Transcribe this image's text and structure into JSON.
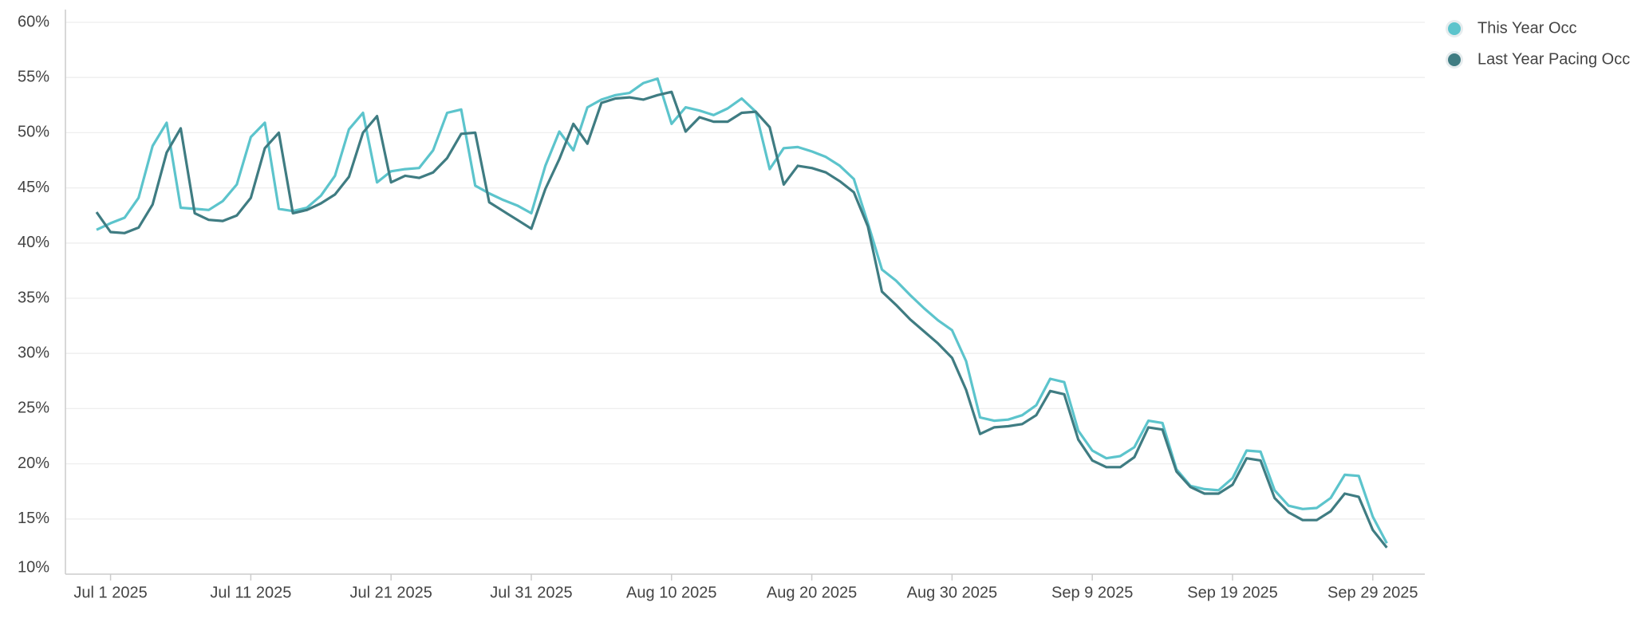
{
  "chart_data": {
    "type": "line",
    "x": [
      "2025-06-30",
      "2025-07-01",
      "2025-07-02",
      "2025-07-03",
      "2025-07-04",
      "2025-07-05",
      "2025-07-06",
      "2025-07-07",
      "2025-07-08",
      "2025-07-09",
      "2025-07-10",
      "2025-07-11",
      "2025-07-12",
      "2025-07-13",
      "2025-07-14",
      "2025-07-15",
      "2025-07-16",
      "2025-07-17",
      "2025-07-18",
      "2025-07-19",
      "2025-07-20",
      "2025-07-21",
      "2025-07-22",
      "2025-07-23",
      "2025-07-24",
      "2025-07-25",
      "2025-07-26",
      "2025-07-27",
      "2025-07-28",
      "2025-07-29",
      "2025-07-30",
      "2025-07-31",
      "2025-08-01",
      "2025-08-02",
      "2025-08-03",
      "2025-08-04",
      "2025-08-05",
      "2025-08-06",
      "2025-08-07",
      "2025-08-08",
      "2025-08-09",
      "2025-08-10",
      "2025-08-11",
      "2025-08-12",
      "2025-08-13",
      "2025-08-14",
      "2025-08-15",
      "2025-08-16",
      "2025-08-17",
      "2025-08-18",
      "2025-08-19",
      "2025-08-20",
      "2025-08-21",
      "2025-08-22",
      "2025-08-23",
      "2025-08-24",
      "2025-08-25",
      "2025-08-26",
      "2025-08-27",
      "2025-08-28",
      "2025-08-29",
      "2025-08-30",
      "2025-08-31",
      "2025-09-01",
      "2025-09-02",
      "2025-09-03",
      "2025-09-04",
      "2025-09-05",
      "2025-09-06",
      "2025-09-07",
      "2025-09-08",
      "2025-09-09",
      "2025-09-10",
      "2025-09-11",
      "2025-09-12",
      "2025-09-13",
      "2025-09-14",
      "2025-09-15",
      "2025-09-16",
      "2025-09-17",
      "2025-09-18",
      "2025-09-19",
      "2025-09-20",
      "2025-09-21",
      "2025-09-22",
      "2025-09-23",
      "2025-09-24",
      "2025-09-25",
      "2025-09-26",
      "2025-09-27",
      "2025-09-28",
      "2025-09-29",
      "2025-09-30"
    ],
    "series": [
      {
        "name": "This Year Occ",
        "color": "#5cc4cc",
        "values": [
          41.2,
          41.8,
          42.3,
          44.1,
          48.8,
          50.9,
          43.2,
          43.1,
          43.0,
          43.8,
          45.3,
          49.6,
          50.9,
          43.1,
          42.9,
          43.2,
          44.3,
          46.1,
          50.3,
          51.8,
          45.5,
          46.5,
          46.7,
          46.8,
          48.4,
          51.8,
          52.1,
          45.2,
          44.5,
          43.9,
          43.4,
          42.7,
          47.0,
          50.1,
          48.4,
          52.3,
          53.0,
          53.4,
          53.6,
          54.5,
          54.9,
          50.8,
          52.3,
          52.0,
          51.6,
          52.2,
          53.1,
          51.9,
          46.7,
          48.6,
          48.7,
          48.3,
          47.8,
          47.0,
          45.8,
          41.8,
          37.6,
          36.6,
          35.3,
          34.1,
          33.0,
          32.1,
          29.3,
          24.2,
          23.9,
          24.0,
          24.4,
          25.3,
          27.7,
          27.4,
          23.0,
          21.2,
          20.5,
          20.7,
          21.5,
          23.9,
          23.7,
          19.5,
          18.0,
          17.7,
          17.6,
          18.7,
          21.2,
          21.1,
          17.6,
          16.2,
          15.9,
          16.0,
          16.9,
          19.0,
          18.9,
          15.2,
          12.8
        ]
      },
      {
        "name": "Last Year Pacing Occ",
        "color": "#3f7c82",
        "values": [
          42.8,
          41.0,
          40.9,
          41.4,
          43.5,
          48.2,
          50.4,
          42.7,
          42.1,
          42.0,
          42.5,
          44.1,
          48.6,
          50.0,
          42.7,
          43.0,
          43.6,
          44.4,
          46.0,
          50.0,
          51.5,
          45.5,
          46.1,
          45.9,
          46.4,
          47.7,
          49.9,
          50.0,
          43.7,
          42.9,
          42.1,
          41.3,
          44.9,
          47.6,
          50.8,
          49.0,
          52.7,
          53.1,
          53.2,
          53.0,
          53.4,
          53.7,
          50.1,
          51.4,
          51.0,
          51.0,
          51.8,
          51.9,
          50.5,
          45.3,
          47.0,
          46.8,
          46.4,
          45.6,
          44.6,
          41.5,
          35.6,
          34.4,
          33.1,
          32.0,
          30.9,
          29.6,
          26.7,
          22.7,
          23.3,
          23.4,
          23.6,
          24.4,
          26.6,
          26.3,
          22.2,
          20.3,
          19.7,
          19.7,
          20.6,
          23.3,
          23.1,
          19.3,
          17.9,
          17.3,
          17.3,
          18.1,
          20.5,
          20.3,
          16.9,
          15.6,
          14.9,
          14.9,
          15.7,
          17.3,
          17.0,
          14.0,
          12.4
        ]
      }
    ],
    "ylim": [
      10,
      60
    ],
    "yticks": [
      {
        "value": 10,
        "label": "10%"
      },
      {
        "value": 15,
        "label": "15%"
      },
      {
        "value": 20,
        "label": "20%"
      },
      {
        "value": 25,
        "label": "25%"
      },
      {
        "value": 30,
        "label": "30%"
      },
      {
        "value": 35,
        "label": "35%"
      },
      {
        "value": 40,
        "label": "40%"
      },
      {
        "value": 45,
        "label": "45%"
      },
      {
        "value": 50,
        "label": "50%"
      },
      {
        "value": 55,
        "label": "55%"
      },
      {
        "value": 60,
        "label": "60%"
      }
    ],
    "xticks": [
      {
        "value": "2025-07-01",
        "label": "Jul 1 2025"
      },
      {
        "value": "2025-07-11",
        "label": "Jul 11 2025"
      },
      {
        "value": "2025-07-21",
        "label": "Jul 21 2025"
      },
      {
        "value": "2025-07-31",
        "label": "Jul 31 2025"
      },
      {
        "value": "2025-08-10",
        "label": "Aug 10 2025"
      },
      {
        "value": "2025-08-20",
        "label": "Aug 20 2025"
      },
      {
        "value": "2025-08-30",
        "label": "Aug 30 2025"
      },
      {
        "value": "2025-09-09",
        "label": "Sep 9 2025"
      },
      {
        "value": "2025-09-19",
        "label": "Sep 19 2025"
      },
      {
        "value": "2025-09-29",
        "label": "Sep 29 2025"
      }
    ],
    "grid": true,
    "legend": "top-right"
  }
}
